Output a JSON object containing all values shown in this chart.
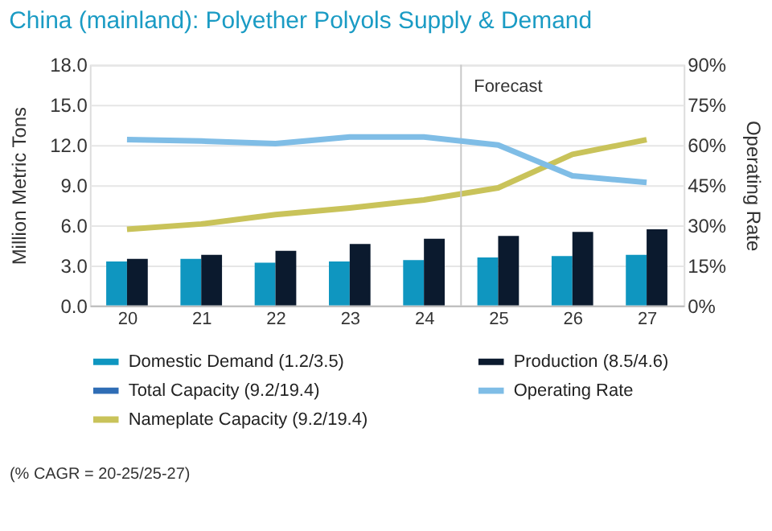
{
  "chart_data": {
    "type": "bar",
    "title": "China (mainland): Polyether Polyols Supply & Demand",
    "x": [
      20,
      21,
      22,
      23,
      24,
      25,
      26,
      27
    ],
    "xlim": [
      19.5,
      27.5
    ],
    "xticks": [
      20,
      21,
      22,
      23,
      24,
      25,
      26,
      27
    ],
    "ylabel": "Million Metric Tons",
    "y2label": "Operating Rate",
    "ylim": [
      0,
      18
    ],
    "yticks": [
      {
        "value": 0,
        "label": "0.0"
      },
      {
        "value": 3,
        "label": "3.0"
      },
      {
        "value": 6,
        "label": "6.0"
      },
      {
        "value": 9,
        "label": "9.0"
      },
      {
        "value": 12,
        "label": "12.0"
      },
      {
        "value": 15,
        "label": "15.0"
      },
      {
        "value": 18,
        "label": "18.0"
      }
    ],
    "y2lim": [
      0,
      90
    ],
    "y2ticks": [
      {
        "value": 0,
        "label": "0%"
      },
      {
        "value": 15,
        "label": "15%"
      },
      {
        "value": 30,
        "label": "30%"
      },
      {
        "value": 45,
        "label": "45%"
      },
      {
        "value": 60,
        "label": "60%"
      },
      {
        "value": 75,
        "label": "75%"
      },
      {
        "value": 90,
        "label": "90%"
      }
    ],
    "series": [
      {
        "name": "Domestic Demand (1.2/3.5)",
        "color": "#0f96c0",
        "values": [
          3.3,
          3.5,
          3.2,
          3.3,
          3.4,
          3.6,
          3.7,
          3.8
        ]
      },
      {
        "name": "Production (8.5/4.6)",
        "color": "#0b1a2e",
        "values": [
          3.5,
          3.8,
          4.1,
          4.6,
          5.0,
          5.2,
          5.5,
          5.7
        ]
      },
      {
        "name": "Total Capacity (9.2/19.4)",
        "type": "line",
        "color": "#2f6db5",
        "values": [
          null,
          null,
          null,
          null,
          null,
          null,
          null,
          null
        ]
      },
      {
        "name": "Operating Rate",
        "type": "line",
        "axis": "y2",
        "color": "#7fbde6",
        "values": [
          62,
          61.5,
          60.5,
          63,
          63,
          60,
          48.5,
          46
        ]
      },
      {
        "name": "Nameplate Capacity (9.2/19.4)",
        "type": "line",
        "color": "#c9c35a",
        "values": [
          5.7,
          6.1,
          6.8,
          7.3,
          7.9,
          8.8,
          11.3,
          12.4
        ]
      }
    ],
    "ref_lines": [
      {
        "axis": "x",
        "value": 24.5,
        "label": "Forecast",
        "color": "#c8c8c8"
      }
    ],
    "annotations": [
      "(% CAGR = 20-25/25-27)"
    ],
    "grid": "y",
    "legend": "bottom"
  }
}
